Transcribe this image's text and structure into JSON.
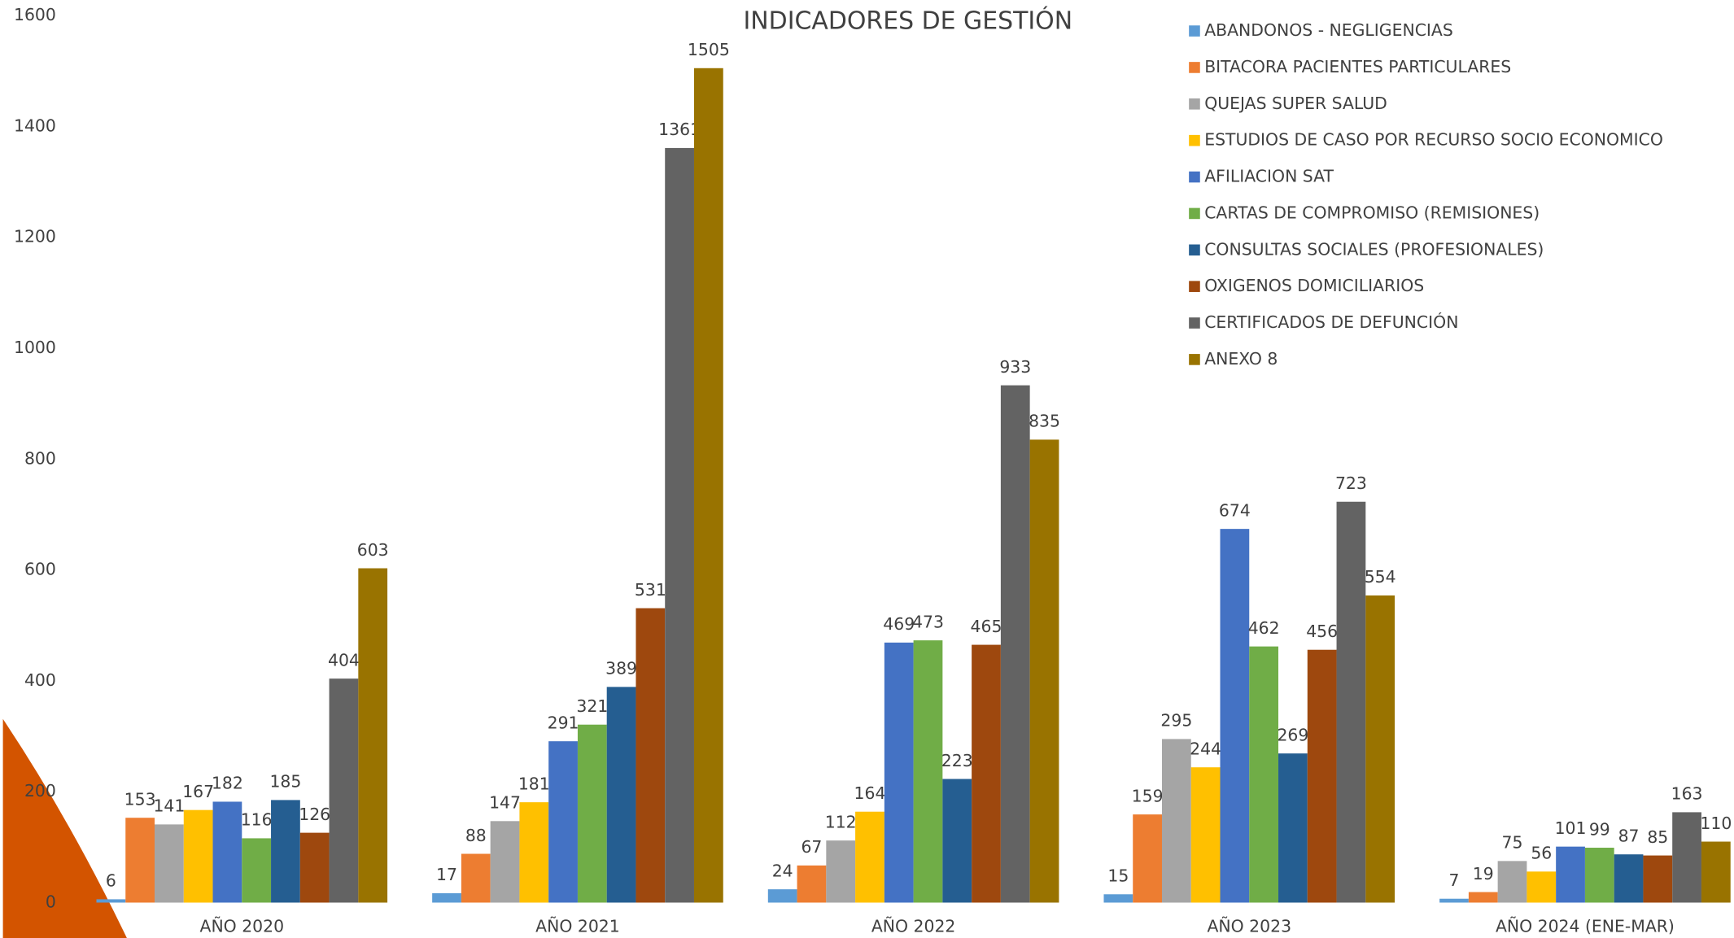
{
  "chart_data": {
    "type": "bar",
    "title": "INDICADORES DE GESTIÓN",
    "categories": [
      "AÑO 2020",
      "AÑO 2021",
      "AÑO 2022",
      "AÑO 2023",
      "AÑO 2024 (ENE-MAR)"
    ],
    "series": [
      {
        "name": "ABANDONOS - NEGLIGENCIAS",
        "color": "#5b9bd5",
        "values": [
          6,
          17,
          24,
          15,
          7
        ]
      },
      {
        "name": "BITACORA PACIENTES PARTICULARES",
        "color": "#ed7d31",
        "values": [
          153,
          88,
          67,
          159,
          19
        ]
      },
      {
        "name": "QUEJAS SUPER SALUD",
        "color": "#a5a5a5",
        "values": [
          141,
          147,
          112,
          295,
          75
        ]
      },
      {
        "name": "ESTUDIOS DE CASO POR RECURSO SOCIO ECONOMICO",
        "color": "#ffc000",
        "values": [
          167,
          181,
          164,
          244,
          56
        ]
      },
      {
        "name": "AFILIACION SAT",
        "color": "#4472c4",
        "values": [
          182,
          291,
          469,
          674,
          101
        ]
      },
      {
        "name": "CARTAS DE COMPROMISO (REMISIONES)",
        "color": "#70ad47",
        "values": [
          116,
          321,
          473,
          462,
          99
        ]
      },
      {
        "name": "CONSULTAS SOCIALES (PROFESIONALES)",
        "color": "#255e91",
        "values": [
          185,
          389,
          223,
          269,
          87
        ]
      },
      {
        "name": "OXIGENOS DOMICILIARIOS",
        "color": "#9e480e",
        "values": [
          126,
          531,
          465,
          456,
          85
        ]
      },
      {
        "name": "CERTIFICADOS DE DEFUNCIÓN",
        "color": "#636363",
        "values": [
          404,
          1361,
          933,
          723,
          163
        ]
      },
      {
        "name": "ANEXO 8",
        "color": "#997300",
        "values": [
          603,
          1505,
          835,
          554,
          110
        ]
      }
    ],
    "ylim": [
      0,
      1600
    ],
    "yticks": [
      0,
      200,
      400,
      600,
      800,
      1000,
      1200,
      1400,
      1600
    ],
    "legend": "top-right"
  }
}
